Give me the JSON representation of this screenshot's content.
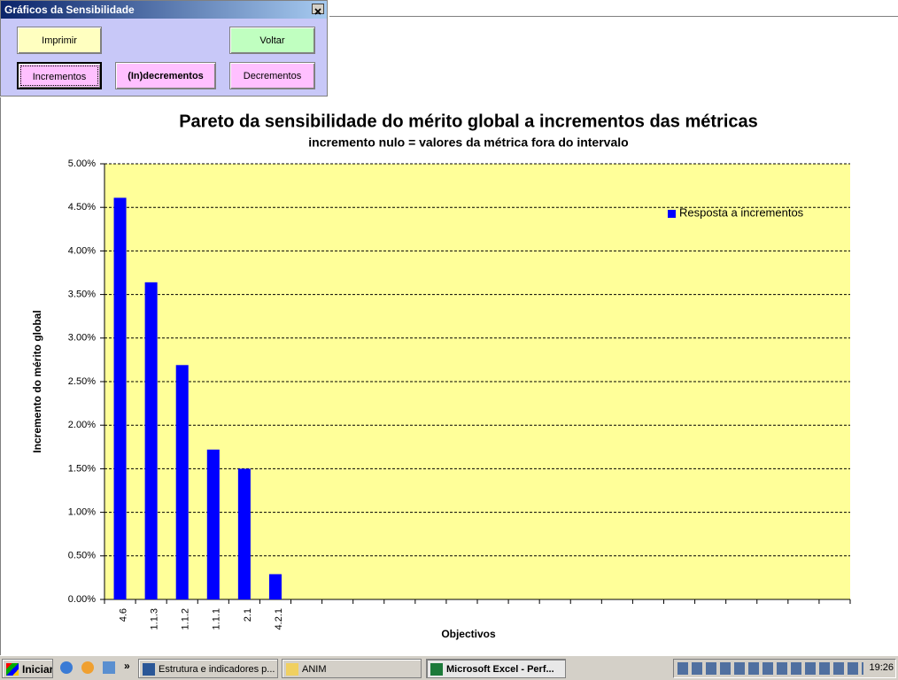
{
  "dialog": {
    "title": "Gráficos da Sensibilidade",
    "buttons": [
      "Imprimir",
      "Voltar",
      "Incrementos",
      "(In)decrementos",
      "Decrementos"
    ]
  },
  "taskbar": {
    "start": "Iniciar",
    "tasks": [
      "Estrutura e indicadores p...",
      "ANIM",
      "Microsoft Excel - Perf..."
    ],
    "clock": "19:26"
  },
  "chart_data": {
    "type": "bar",
    "title": "Pareto da sensibilidade do mérito global a incrementos das métricas",
    "subtitle": "incremento nulo = valores da métrica fora do intervalo",
    "x_label": "Objectivos",
    "y_label": "Incremento do mérito global",
    "categories": [
      "4.6",
      "1.1.3",
      "1.1.2",
      "1.1.1",
      "2.1",
      "4.2.1",
      null,
      null,
      null,
      null,
      null,
      null,
      null,
      null,
      null,
      null,
      null,
      null,
      null,
      null,
      null,
      null,
      null,
      null
    ],
    "series": [
      {
        "name": "Resposta a incrementos",
        "color": "#0000ff",
        "values": [
          4.61,
          3.64,
          2.69,
          1.72,
          1.5,
          0.29,
          0,
          0,
          0,
          0,
          0,
          0,
          0,
          0,
          0,
          0,
          0,
          0,
          0,
          0,
          0,
          0,
          0,
          0
        ]
      }
    ],
    "ylim": [
      0,
      5
    ],
    "yticks": [
      {
        "value": 0,
        "label": "0.00%"
      },
      {
        "value": 0.5,
        "label": "0.50%"
      },
      {
        "value": 1,
        "label": "1.00%"
      },
      {
        "value": 1.5,
        "label": "1.50%"
      },
      {
        "value": 2,
        "label": "2.00%"
      },
      {
        "value": 2.5,
        "label": "2.50%"
      },
      {
        "value": 3,
        "label": "3.00%"
      },
      {
        "value": 3.5,
        "label": "3.50%"
      },
      {
        "value": 4,
        "label": "4.00%"
      },
      {
        "value": 4.5,
        "label": "4.50%"
      },
      {
        "value": 5,
        "label": "5.00%"
      }
    ],
    "grid": true,
    "plot_color": "#ffff99",
    "legend": "top-right"
  }
}
